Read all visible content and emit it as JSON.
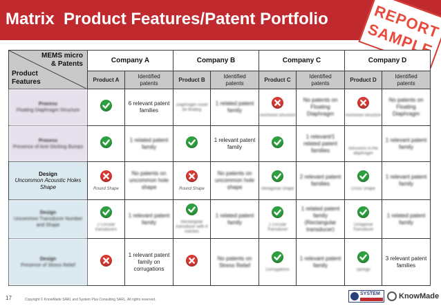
{
  "title": "Matrix  Product Features/Patent Portfolio",
  "stamp": {
    "line1": "REPORT",
    "line2": "SAMPLE"
  },
  "corner": {
    "top_line1": "MEMS micro",
    "top_line2": "& Patents",
    "bottom_line1": "Product",
    "bottom_line2": "Features"
  },
  "companies": [
    "Company A",
    "Company B",
    "Company C",
    "Company D"
  ],
  "sub_headers": {
    "product_a": "Product A",
    "product_b": "Product B",
    "product_c": "Product C",
    "product_d": "Product D",
    "identified": "Identified",
    "patents": "patents"
  },
  "rows": [
    {
      "feature_bold": "Process",
      "feature_text": "Floating Diaphragm Structure",
      "cells": {
        "a_icon": "check",
        "a_patents": "6 relevant patent families",
        "b_note": "Diaphragm could be floating",
        "b_patents": "1 related patent family",
        "c_icon": "cross",
        "c_note": "Anchored Structure",
        "c_patents": "No patents on Floating Diaphragm",
        "d_icon": "cross",
        "d_note": "Anchored Structure",
        "d_patents": "No patents on Floating Diaphragm"
      }
    },
    {
      "feature_bold": "Process",
      "feature_text": "Presence of Anti-Sticking Bumps",
      "cells": {
        "a_icon": "check",
        "a_patents": "1 related patent family",
        "b_icon": "check",
        "b_patents": "1 relevant patent family",
        "c_icon": "check",
        "c_patents": "1 relevant/1 related patent families",
        "d_note": "Intrusions in the diaphragm",
        "d_patents": "1 relevant patent family"
      }
    },
    {
      "feature_bold": "Design",
      "feature_text": "Uncommon Acoustic Holes Shape",
      "cells": {
        "a_icon": "cross",
        "a_note": "Round Shape",
        "a_patents": "No patents on uncommon hole shape",
        "b_icon": "cross",
        "b_note": "Round Shape",
        "b_patents": "No patents on uncommon hole shape",
        "c_icon": "check",
        "c_note": "Hexagonal Shape",
        "c_patents": "2 relevant patent families",
        "d_icon": "check",
        "d_note": "Cross Shape",
        "d_patents": "1 relevant patent family"
      }
    },
    {
      "feature_bold": "Design",
      "feature_text": "Uncommon Transducer Number and Shape",
      "cells": {
        "a_icon": "check",
        "a_note": "2 Circular transducers",
        "a_patents": "1 relevant patent family",
        "b_icon": "check",
        "b_note": "Rectangular transducer with 4 notches",
        "b_patents": "1 related patent family",
        "c_icon": "check",
        "c_note": "1 Circular Transducer",
        "c_patents": "1 related patent family (Rectangular transducer)",
        "d_icon": "check",
        "d_note": "Octagonal Transducer",
        "d_patents": "1 related patent family"
      }
    },
    {
      "feature_bold": "Design",
      "feature_text": "Presence of Stress Relief",
      "cells": {
        "a_icon": "cross",
        "a_patents": "1 relevant patent family on corrugations",
        "b_icon": "cross",
        "b_patents": "No patents on Stress Relief",
        "c_icon": "check",
        "c_note": "Corrugations",
        "c_patents": "1 relevant patent family",
        "d_icon": "check",
        "d_note": "Springs",
        "d_patents": "3 relevant patent families"
      }
    }
  ],
  "footer": {
    "page_number": "17",
    "copyright": "Copyright © KnowMade SARL and System Plus Consulting SARL. All rights reserved.",
    "logo_systemplus": "SYSTEM",
    "logo_knowmade": "KnowMade"
  },
  "colors": {
    "title_bar": "#c0292d",
    "stamp": "#e84b3c",
    "check": "#2fa040",
    "cross": "#d83a34",
    "header_grey": "#c9c9c9",
    "process_row": "#e7e1ee",
    "design_row": "#dbe9f0"
  }
}
